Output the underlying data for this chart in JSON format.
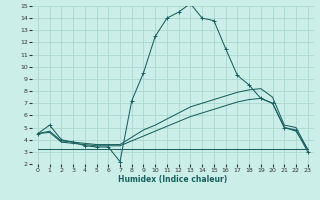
{
  "xlabel": "Humidex (Indice chaleur)",
  "bg_color": "#cceee8",
  "line_color": "#1a6060",
  "grid_color": "#aad8d0",
  "xlim": [
    -0.5,
    23.5
  ],
  "ylim": [
    2,
    15
  ],
  "xticks": [
    0,
    1,
    2,
    3,
    4,
    5,
    6,
    7,
    8,
    9,
    10,
    11,
    12,
    13,
    14,
    15,
    16,
    17,
    18,
    19,
    20,
    21,
    22,
    23
  ],
  "yticks": [
    2,
    3,
    4,
    5,
    6,
    7,
    8,
    9,
    10,
    11,
    12,
    13,
    14,
    15
  ],
  "line1_x": [
    0,
    1,
    2,
    3,
    4,
    5,
    6,
    7,
    8,
    9,
    10,
    11,
    12,
    13,
    14,
    15,
    16,
    17,
    18,
    19,
    20,
    21,
    22,
    23
  ],
  "line1_y": [
    4.5,
    5.2,
    4.0,
    3.8,
    3.5,
    3.4,
    3.4,
    2.2,
    7.2,
    9.5,
    12.5,
    14.0,
    14.5,
    15.2,
    14.0,
    13.8,
    11.5,
    9.3,
    8.5,
    7.4,
    7.0,
    5.0,
    4.8,
    3.0
  ],
  "line2_x": [
    0,
    1,
    2,
    3,
    4,
    5,
    6,
    7,
    8,
    9,
    10,
    11,
    12,
    13,
    14,
    15,
    16,
    17,
    18,
    19,
    20,
    21,
    22,
    23
  ],
  "line2_y": [
    4.5,
    4.7,
    3.9,
    3.8,
    3.7,
    3.6,
    3.6,
    3.6,
    4.2,
    4.8,
    5.2,
    5.7,
    6.2,
    6.7,
    7.0,
    7.3,
    7.6,
    7.9,
    8.1,
    8.2,
    7.5,
    5.2,
    5.0,
    3.2
  ],
  "line3_x": [
    0,
    1,
    2,
    3,
    4,
    5,
    6,
    7,
    8,
    9,
    10,
    11,
    12,
    13,
    14,
    15,
    16,
    17,
    18,
    19,
    20,
    21,
    22,
    23
  ],
  "line3_y": [
    4.5,
    4.6,
    3.8,
    3.7,
    3.6,
    3.5,
    3.5,
    3.5,
    3.9,
    4.3,
    4.7,
    5.1,
    5.5,
    5.9,
    6.2,
    6.5,
    6.8,
    7.1,
    7.3,
    7.4,
    7.0,
    5.0,
    4.7,
    3.2
  ],
  "line4_x": [
    0,
    1,
    2,
    3,
    4,
    5,
    6,
    7,
    8,
    9,
    10,
    11,
    12,
    13,
    14,
    15,
    16,
    17,
    18,
    19,
    20,
    21,
    22,
    23
  ],
  "line4_y": [
    3.2,
    3.2,
    3.2,
    3.2,
    3.2,
    3.2,
    3.2,
    3.2,
    3.2,
    3.2,
    3.2,
    3.2,
    3.2,
    3.2,
    3.2,
    3.2,
    3.2,
    3.2,
    3.2,
    3.2,
    3.2,
    3.2,
    3.2,
    3.2
  ]
}
